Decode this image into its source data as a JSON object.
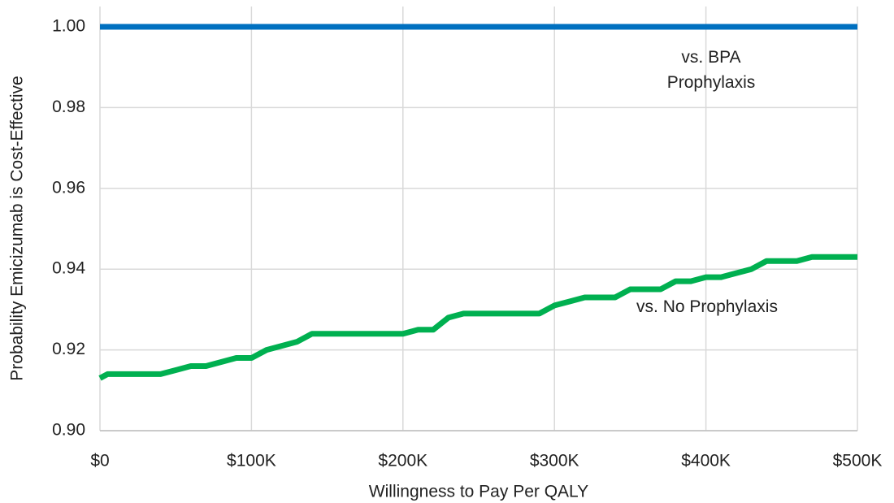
{
  "chart_data": {
    "type": "line",
    "xlabel": "Willingness to Pay Per QALY",
    "ylabel": "Probability Emicizumab is Cost-Effective",
    "xlim": [
      0,
      500000
    ],
    "xticks": [
      {
        "value": 0,
        "label": "$0"
      },
      {
        "value": 100000,
        "label": "$100K"
      },
      {
        "value": 200000,
        "label": "$200K"
      },
      {
        "value": 300000,
        "label": "$300K"
      },
      {
        "value": 400000,
        "label": "$400K"
      },
      {
        "value": 500000,
        "label": "$500K"
      }
    ],
    "ylim": [
      0.9,
      1.0
    ],
    "yticks": [
      {
        "value": 0.9,
        "label": "0.90"
      },
      0.92,
      0.94,
      0.96,
      0.98,
      {
        "value": 1.0,
        "label": "1.00"
      }
    ],
    "grid": true,
    "series": [
      {
        "name": "vs. BPA Prophylaxis",
        "color": "#0070c0",
        "x": [
          0,
          500000
        ],
        "values": [
          1.0,
          1.0
        ]
      },
      {
        "name": "vs. No Prophylaxis",
        "color": "#00b050",
        "x": [
          0,
          5000,
          10000,
          20000,
          30000,
          40000,
          50000,
          60000,
          70000,
          80000,
          90000,
          100000,
          110000,
          120000,
          130000,
          140000,
          150000,
          160000,
          170000,
          180000,
          190000,
          200000,
          210000,
          220000,
          230000,
          240000,
          250000,
          260000,
          270000,
          280000,
          290000,
          300000,
          310000,
          320000,
          330000,
          340000,
          350000,
          360000,
          370000,
          380000,
          390000,
          400000,
          410000,
          420000,
          430000,
          440000,
          450000,
          460000,
          470000,
          480000,
          490000,
          500000
        ],
        "values": [
          0.913,
          0.914,
          0.914,
          0.914,
          0.914,
          0.914,
          0.915,
          0.916,
          0.916,
          0.917,
          0.918,
          0.918,
          0.92,
          0.921,
          0.922,
          0.924,
          0.924,
          0.924,
          0.924,
          0.924,
          0.924,
          0.924,
          0.925,
          0.925,
          0.928,
          0.929,
          0.929,
          0.929,
          0.929,
          0.929,
          0.929,
          0.931,
          0.932,
          0.933,
          0.933,
          0.933,
          0.935,
          0.935,
          0.935,
          0.937,
          0.937,
          0.938,
          0.938,
          0.939,
          0.94,
          0.942,
          0.942,
          0.942,
          0.943,
          0.943,
          0.943,
          0.943
        ]
      }
    ]
  }
}
